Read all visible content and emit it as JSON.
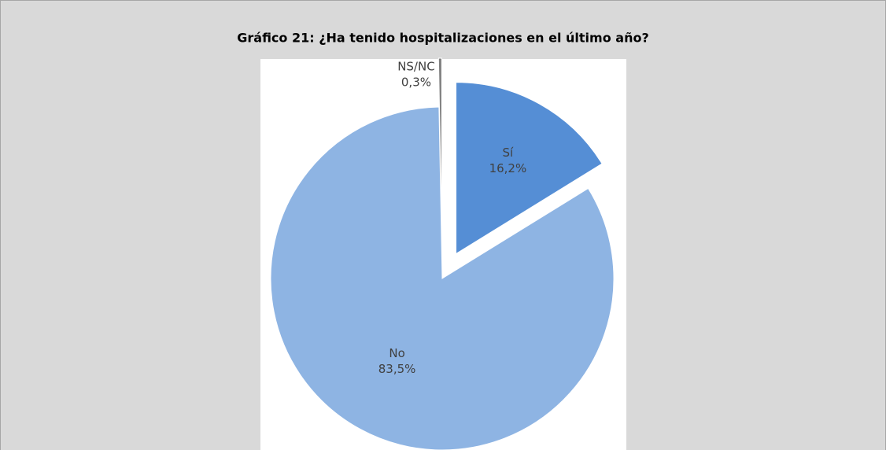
{
  "chart_data": {
    "type": "pie",
    "title": "Gráfico 21: ¿Ha tenido hospitalizaciones en el último año?",
    "categories": [
      "Sí",
      "No",
      "NS/NC"
    ],
    "values": [
      16.2,
      83.5,
      0.3
    ],
    "value_labels": [
      "16,2%",
      "83,5%",
      "0,3%"
    ],
    "colors": [
      "#558ed5",
      "#8eb4e3",
      "#808080"
    ]
  }
}
